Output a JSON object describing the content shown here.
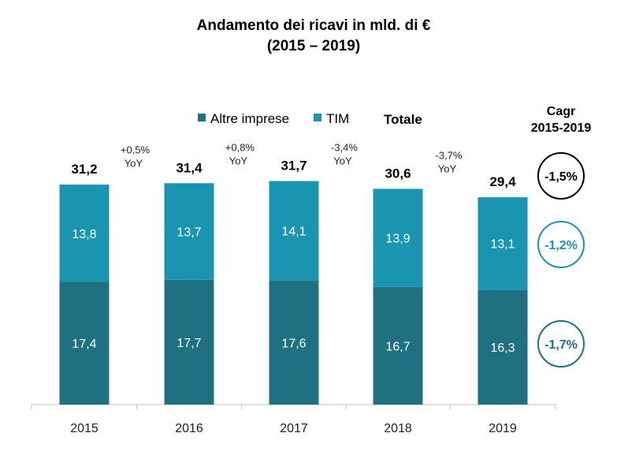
{
  "chart_data": {
    "type": "bar",
    "stacked": true,
    "title": "Andamento dei ricavi in mld. di €",
    "subtitle": "(2015 – 2019)",
    "categories": [
      "2015",
      "2016",
      "2017",
      "2018",
      "2019"
    ],
    "series": [
      {
        "name": "Altre imprese",
        "values": [
          17.4,
          17.7,
          17.6,
          16.7,
          16.3
        ],
        "labels": [
          "17,4",
          "17,7",
          "17,6",
          "16,7",
          "16,3"
        ],
        "color": "#1F7182"
      },
      {
        "name": "TIM",
        "values": [
          13.8,
          13.7,
          14.1,
          13.9,
          13.1
        ],
        "labels": [
          "13,8",
          "13,7",
          "14,1",
          "13,9",
          "13,1"
        ],
        "color": "#1995B2"
      }
    ],
    "totals_label": "Totale",
    "totals": [
      31.2,
      31.4,
      31.7,
      30.6,
      29.4
    ],
    "totals_text": [
      "31,2",
      "31,4",
      "31,7",
      "30,6",
      "29,4"
    ],
    "yoy": [
      {
        "pct": "+0,5%",
        "suffix": "YoY"
      },
      {
        "pct": "+0,8%",
        "suffix": "YoY"
      },
      {
        "pct": "-3,4%",
        "suffix": "YoY"
      },
      {
        "pct": "-3,7%",
        "suffix": "YoY"
      }
    ],
    "cagr": {
      "header": [
        "Cagr",
        "2015-2019"
      ],
      "total": {
        "value": "-1,5%",
        "color": "#000000"
      },
      "tim": {
        "value": "-1,2%",
        "color": "#1995B2"
      },
      "altre": {
        "value": "-1,7%",
        "color": "#1F7182"
      }
    },
    "legend_placement": "top-center",
    "grid": false
  }
}
